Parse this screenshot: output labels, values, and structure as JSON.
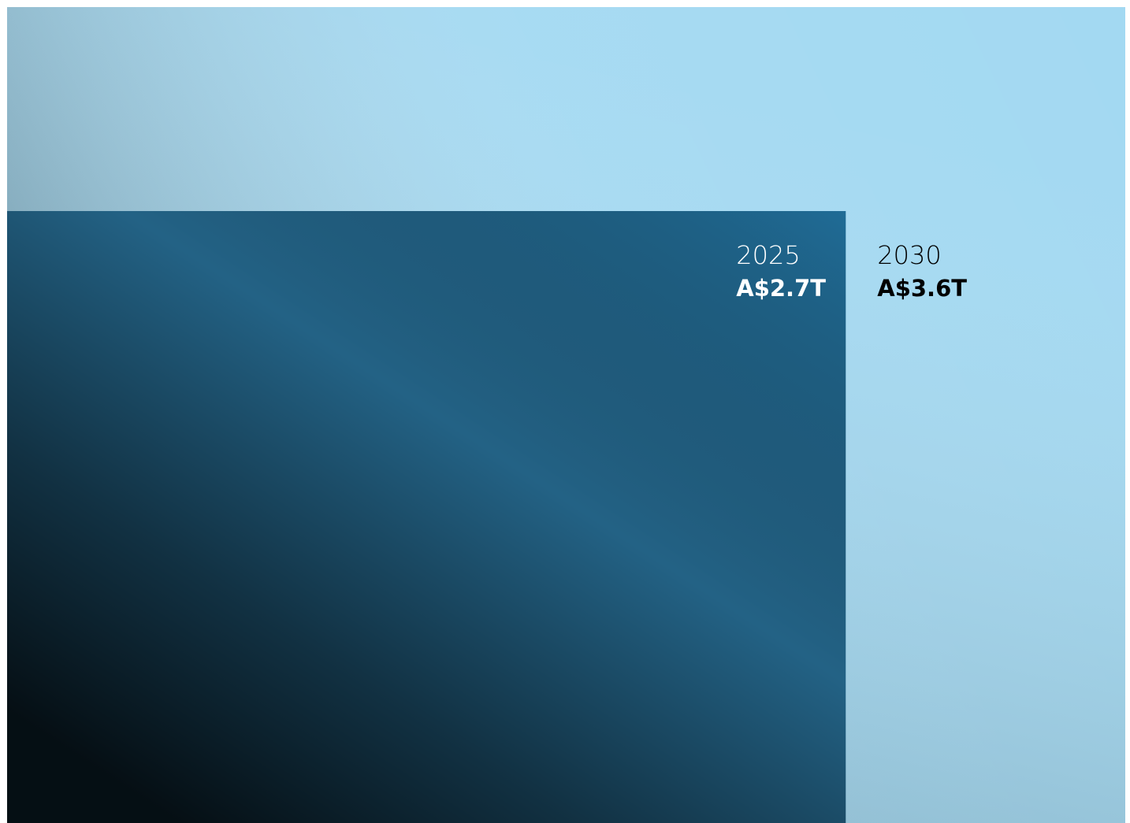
{
  "chart_data": {
    "type": "nested",
    "categories": [
      "2025",
      "2030"
    ],
    "values": [
      2.7,
      3.6
    ],
    "value_labels": [
      "A$2.7T",
      "A$3.6T"
    ],
    "colors": [
      "#236285",
      "#a3d9f2"
    ],
    "label_colors": [
      "#ffffff",
      "#000000"
    ]
  }
}
